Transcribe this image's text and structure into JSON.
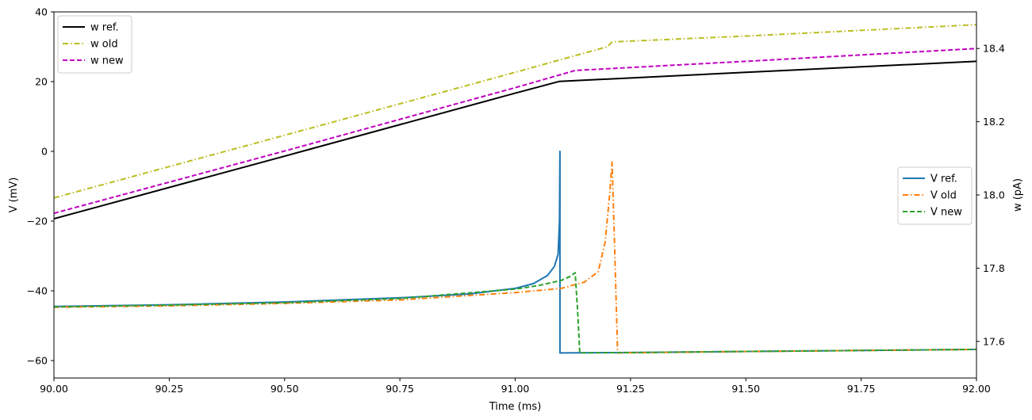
{
  "chart_data": {
    "type": "line",
    "xlabel": "Time (ms)",
    "ylabel_left": "V (mV)",
    "ylabel_right": "w (pA)",
    "xlim": [
      90.0,
      92.0
    ],
    "ylim_left": [
      -65,
      40
    ],
    "ylim_right": [
      17.5,
      18.5
    ],
    "x_ticks": [
      "90.00",
      "90.25",
      "90.50",
      "90.75",
      "91.00",
      "91.25",
      "91.50",
      "91.75",
      "92.00"
    ],
    "y_ticks_left": [
      "40",
      "20",
      "0",
      "−20",
      "−40",
      "−60"
    ],
    "y_ticks_right": [
      "18.4",
      "18.2",
      "18.0",
      "17.8",
      "17.6"
    ],
    "grid": false,
    "legends": [
      {
        "placement": "upper-left",
        "entries": [
          "w ref.",
          "w old",
          "w new"
        ]
      },
      {
        "placement": "center-right",
        "entries": [
          "V ref.",
          "V old",
          "V new"
        ]
      }
    ],
    "series": [
      {
        "name": "w ref.",
        "axis": "right",
        "color": "#000000",
        "style": "solid",
        "x": [
          90.0,
          90.5,
          91.0,
          91.095,
          91.5,
          92.0
        ],
        "y": [
          17.935,
          18.106,
          18.278,
          18.31,
          18.335,
          18.365
        ]
      },
      {
        "name": "w old",
        "axis": "right",
        "color": "#bcbd22",
        "style": "dashdot",
        "x": [
          90.0,
          90.5,
          91.0,
          91.2,
          91.21,
          91.5,
          92.0
        ],
        "y": [
          17.992,
          18.163,
          18.335,
          18.405,
          18.418,
          18.434,
          18.465
        ]
      },
      {
        "name": "w new",
        "axis": "right",
        "color": "#c000c0",
        "style": "dashed",
        "x": [
          90.0,
          90.5,
          91.0,
          91.13,
          91.5,
          92.0
        ],
        "y": [
          17.95,
          18.12,
          18.293,
          18.34,
          18.365,
          18.4
        ]
      },
      {
        "name": "V ref.",
        "axis": "left",
        "color": "#1f77b4",
        "style": "solid",
        "x": [
          90.0,
          90.25,
          90.5,
          90.75,
          90.9,
          91.0,
          91.04,
          91.07,
          91.085,
          91.093,
          91.096,
          91.097,
          91.097,
          91.25,
          91.5,
          91.75,
          92.0
        ],
        "y": [
          -44.5,
          -44.0,
          -43.2,
          -42.0,
          -40.9,
          -39.3,
          -37.9,
          -35.6,
          -33.0,
          -29.5,
          -20.0,
          0.0,
          -57.8,
          -57.7,
          -57.4,
          -57.1,
          -56.8
        ]
      },
      {
        "name": "V old",
        "axis": "left",
        "color": "#ff7f0e",
        "style": "dashdot",
        "x": [
          90.0,
          90.25,
          90.5,
          90.75,
          91.0,
          91.1,
          91.15,
          91.18,
          91.195,
          91.205,
          91.21,
          91.215,
          91.222,
          91.3,
          91.5,
          91.75,
          92.0
        ],
        "y": [
          -44.7,
          -44.3,
          -43.6,
          -42.6,
          -40.5,
          -39.3,
          -37.5,
          -34.5,
          -26.0,
          -12.0,
          -3.0,
          -25.0,
          -57.8,
          -57.7,
          -57.4,
          -57.1,
          -56.8
        ]
      },
      {
        "name": "V new",
        "axis": "left",
        "color": "#2ca02c",
        "style": "dashed",
        "x": [
          90.0,
          90.25,
          90.5,
          90.75,
          91.0,
          91.05,
          91.1,
          91.12,
          91.13,
          91.135,
          91.14,
          91.25,
          91.5,
          91.75,
          92.0
        ],
        "y": [
          -44.6,
          -44.1,
          -43.4,
          -42.2,
          -39.5,
          -38.5,
          -37.0,
          -35.8,
          -34.8,
          -45.0,
          -57.8,
          -57.7,
          -57.4,
          -57.1,
          -56.8
        ]
      }
    ]
  }
}
